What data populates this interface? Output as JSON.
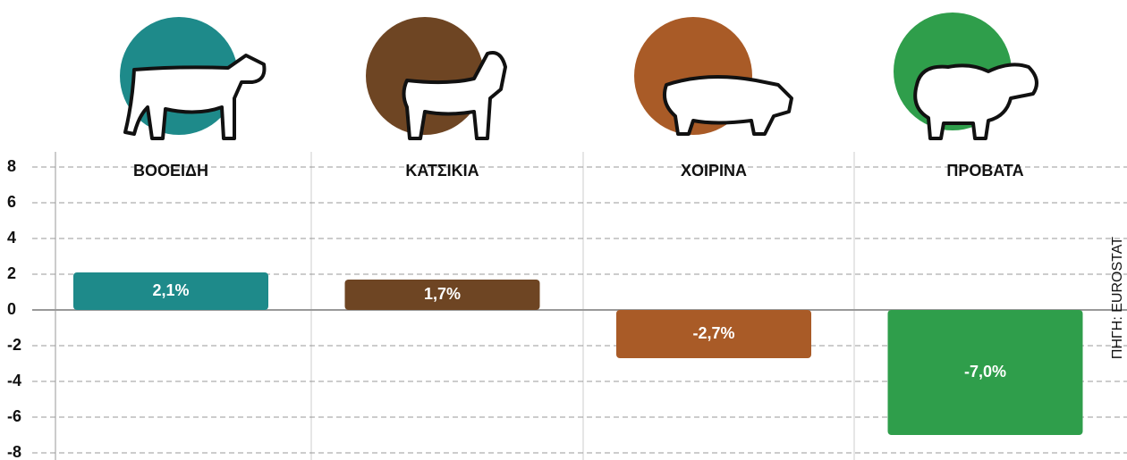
{
  "chart_data": {
    "type": "bar",
    "categories": [
      "ΒΟΟΕΙΔΗ",
      "ΚΑΤΣΙΚΙΑ",
      "ΧΟΙΡΙΝΑ",
      "ΠΡΟΒΑΤΑ"
    ],
    "values": [
      2.1,
      1.7,
      -2.7,
      -7.0
    ],
    "value_labels": [
      "2,1%",
      "1,7%",
      "-2,7%",
      "-7,0%"
    ],
    "colors": [
      "#1e8a8a",
      "#6e4523",
      "#a95b27",
      "#2f9e4b"
    ],
    "ylim": [
      -8,
      8
    ],
    "yticks": [
      -8,
      -6,
      -4,
      -2,
      0,
      2,
      4,
      6,
      8
    ],
    "grid": true,
    "source": "ΠΗΓΗ: EUROSTAT"
  }
}
